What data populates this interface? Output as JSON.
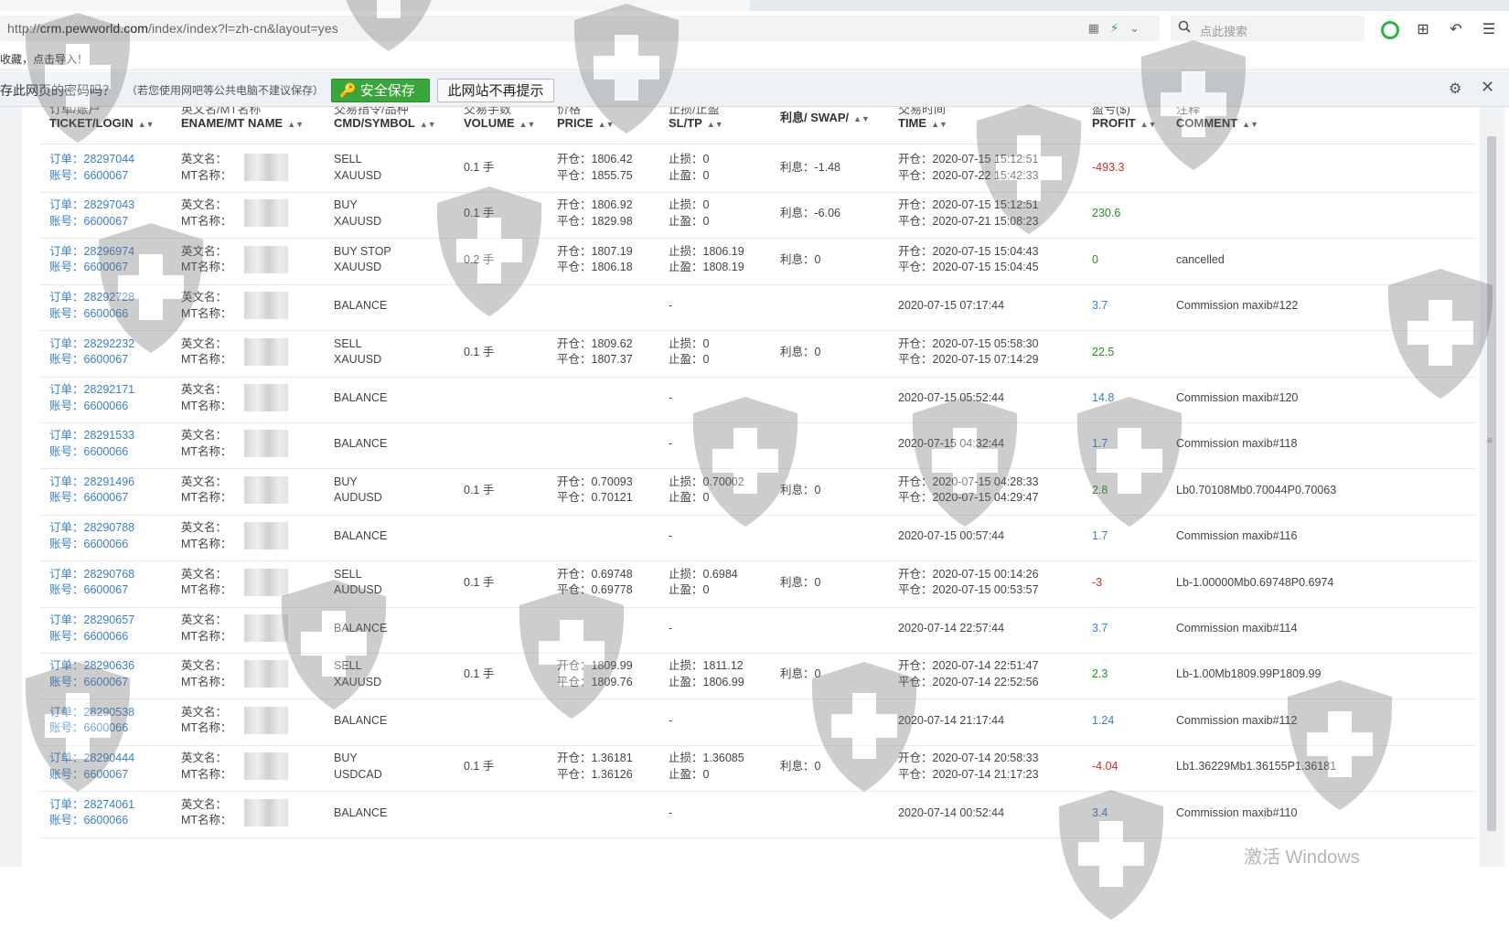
{
  "browser": {
    "url_prefix": "http://",
    "url_host": "crm.pewworld.com",
    "url_path": "/index/index?l=zh-cn&layout=yes",
    "search_placeholder": "点此搜索",
    "bookmark_hint": "收藏，点击导入！"
  },
  "password_bar": {
    "question": "存此网页的密码吗？",
    "note": "（若您使用网吧等公共电脑不建议保存）",
    "save_label": "安全保存",
    "never_label": "此网站不再提示"
  },
  "columns": [
    {
      "cn": "订单/账户",
      "en": "TICKET/LOGIN"
    },
    {
      "cn": "英文名/MT名称",
      "en": "ENAME/MT NAME"
    },
    {
      "cn": "交易指令/品种",
      "en": "CMD/SYMBOL"
    },
    {
      "cn": "交易手数",
      "en": "VOLUME"
    },
    {
      "cn": "价格",
      "en": "PRICE"
    },
    {
      "cn": "止损/止盈",
      "en": "SL/TP"
    },
    {
      "cn": "",
      "en": "利息/ SWAP/"
    },
    {
      "cn": "交易时间",
      "en": "TIME"
    },
    {
      "cn": "盈亏($)",
      "en": "PROFIT"
    },
    {
      "cn": "注释",
      "en": "COMMENT"
    }
  ],
  "rows": [
    {
      "ticket": "订单：28297044",
      "login": "账号：6600067",
      "ename": "英文名：",
      "mtname": "MT名称：",
      "cmd": "SELL",
      "symbol": "XAUUSD",
      "volume": "0.1 手",
      "open_price": "开仓：1806.42",
      "close_price": "平仓：1855.75",
      "sl": "止损：0",
      "tp": "止盈：0",
      "swap": "利息：-1.48",
      "open_time": "开仓：2020-07-15 15:12:51",
      "close_time": "平仓：2020-07-22 15:42:33",
      "profit": "-493.3",
      "profit_kind": "neg",
      "comment": ""
    },
    {
      "ticket": "订单：28297043",
      "login": "账号：6600067",
      "ename": "英文名：",
      "mtname": "MT名称：",
      "cmd": "BUY",
      "symbol": "XAUUSD",
      "volume": "0.1 手",
      "open_price": "开仓：1806.92",
      "close_price": "平仓：1829.98",
      "sl": "止损：0",
      "tp": "止盈：0",
      "swap": "利息：-6.06",
      "open_time": "开仓：2020-07-15 15:12:51",
      "close_time": "平仓：2020-07-21 15:08:23",
      "profit": "230.6",
      "profit_kind": "pos",
      "comment": ""
    },
    {
      "ticket": "订单：28296974",
      "login": "账号：6600067",
      "ename": "英文名：",
      "mtname": "MT名称：",
      "cmd": "BUY STOP",
      "symbol": "XAUUSD",
      "volume": "0.2 手",
      "open_price": "开仓：1807.19",
      "close_price": "平仓：1806.18",
      "sl": "止损：1806.19",
      "tp": "止盈：1808.19",
      "swap": "利息：0",
      "open_time": "开仓：2020-07-15 15:04:43",
      "close_time": "平仓：2020-07-15 15:04:45",
      "profit": "0",
      "profit_kind": "pos",
      "comment": "cancelled"
    },
    {
      "ticket": "订单：28292728",
      "login": "账号：6600066",
      "ename": "英文名：",
      "mtname": "MT名称：",
      "cmd": "BALANCE",
      "symbol": "",
      "volume": "",
      "open_price": "",
      "close_price": "",
      "sl": "-",
      "tp": "",
      "swap": "",
      "open_time": "2020-07-15 07:17:44",
      "close_time": "",
      "profit": "3.7",
      "profit_kind": "blu",
      "comment": "Commission maxib#122"
    },
    {
      "ticket": "订单：28292232",
      "login": "账号：6600067",
      "ename": "英文名：",
      "mtname": "MT名称：",
      "cmd": "SELL",
      "symbol": "XAUUSD",
      "volume": "0.1 手",
      "open_price": "开仓：1809.62",
      "close_price": "平仓：1807.37",
      "sl": "止损：0",
      "tp": "止盈：0",
      "swap": "利息：0",
      "open_time": "开仓：2020-07-15 05:58:30",
      "close_time": "平仓：2020-07-15 07:14:29",
      "profit": "22.5",
      "profit_kind": "pos",
      "comment": ""
    },
    {
      "ticket": "订单：28292171",
      "login": "账号：6600066",
      "ename": "英文名：",
      "mtname": "MT名称：",
      "cmd": "BALANCE",
      "symbol": "",
      "volume": "",
      "open_price": "",
      "close_price": "",
      "sl": "-",
      "tp": "",
      "swap": "",
      "open_time": "2020-07-15 05:52:44",
      "close_time": "",
      "profit": "14.8",
      "profit_kind": "blu",
      "comment": "Commission maxib#120"
    },
    {
      "ticket": "订单：28291533",
      "login": "账号：6600066",
      "ename": "英文名：",
      "mtname": "MT名称：",
      "cmd": "BALANCE",
      "symbol": "",
      "volume": "",
      "open_price": "",
      "close_price": "",
      "sl": "-",
      "tp": "",
      "swap": "",
      "open_time": "2020-07-15 04:32:44",
      "close_time": "",
      "profit": "1.7",
      "profit_kind": "blu",
      "comment": "Commission maxib#118"
    },
    {
      "ticket": "订单：28291496",
      "login": "账号：6600067",
      "ename": "英文名：",
      "mtname": "MT名称：",
      "cmd": "BUY",
      "symbol": "AUDUSD",
      "volume": "0.1 手",
      "open_price": "开仓：0.70093",
      "close_price": "平仓：0.70121",
      "sl": "止损：0.70002",
      "tp": "止盈：0",
      "swap": "利息：0",
      "open_time": "开仓：2020-07-15 04:28:33",
      "close_time": "平仓：2020-07-15 04:29:47",
      "profit": "2.8",
      "profit_kind": "pos",
      "comment": "Lb0.70108Mb0.70044P0.70063"
    },
    {
      "ticket": "订单：28290788",
      "login": "账号：6600066",
      "ename": "英文名：",
      "mtname": "MT名称：",
      "cmd": "BALANCE",
      "symbol": "",
      "volume": "",
      "open_price": "",
      "close_price": "",
      "sl": "-",
      "tp": "",
      "swap": "",
      "open_time": "2020-07-15 00:57:44",
      "close_time": "",
      "profit": "1.7",
      "profit_kind": "blu",
      "comment": "Commission maxib#116"
    },
    {
      "ticket": "订单：28290768",
      "login": "账号：6600067",
      "ename": "英文名：",
      "mtname": "MT名称：",
      "cmd": "SELL",
      "symbol": "AUDUSD",
      "volume": "0.1 手",
      "open_price": "开仓：0.69748",
      "close_price": "平仓：0.69778",
      "sl": "止损：0.6984",
      "tp": "止盈：0",
      "swap": "利息：0",
      "open_time": "开仓：2020-07-15 00:14:26",
      "close_time": "平仓：2020-07-15 00:53:57",
      "profit": "-3",
      "profit_kind": "neg",
      "comment": "Lb-1.00000Mb0.69748P0.6974"
    },
    {
      "ticket": "订单：28290657",
      "login": "账号：6600066",
      "ename": "英文名：",
      "mtname": "MT名称：",
      "cmd": "BALANCE",
      "symbol": "",
      "volume": "",
      "open_price": "",
      "close_price": "",
      "sl": "-",
      "tp": "",
      "swap": "",
      "open_time": "2020-07-14 22:57:44",
      "close_time": "",
      "profit": "3.7",
      "profit_kind": "blu",
      "comment": "Commission maxib#114"
    },
    {
      "ticket": "订单：28290636",
      "login": "账号：6600067",
      "ename": "英文名：",
      "mtname": "MT名称：",
      "cmd": "SELL",
      "symbol": "XAUUSD",
      "volume": "0.1 手",
      "open_price": "开仓：1809.99",
      "close_price": "平仓：1809.76",
      "sl": "止损：1811.12",
      "tp": "止盈：1806.99",
      "swap": "利息：0",
      "open_time": "开仓：2020-07-14 22:51:47",
      "close_time": "平仓：2020-07-14 22:52:56",
      "profit": "2.3",
      "profit_kind": "pos",
      "comment": "Lb-1.00Mb1809.99P1809.99"
    },
    {
      "ticket": "订单：28290538",
      "login": "账号：6600066",
      "ename": "英文名：",
      "mtname": "MT名称：",
      "cmd": "BALANCE",
      "symbol": "",
      "volume": "",
      "open_price": "",
      "close_price": "",
      "sl": "-",
      "tp": "",
      "swap": "",
      "open_time": "2020-07-14 21:17:44",
      "close_time": "",
      "profit": "1.24",
      "profit_kind": "blu",
      "comment": "Commission maxib#112"
    },
    {
      "ticket": "订单：28290444",
      "login": "账号：6600067",
      "ename": "英文名：",
      "mtname": "MT名称：",
      "cmd": "BUY",
      "symbol": "USDCAD",
      "volume": "0.1 手",
      "open_price": "开仓：1.36181",
      "close_price": "平仓：1.36126",
      "sl": "止损：1.36085",
      "tp": "止盈：0",
      "swap": "利息：0",
      "open_time": "开仓：2020-07-14 20:58:33",
      "close_time": "平仓：2020-07-14 21:17:23",
      "profit": "-4.04",
      "profit_kind": "neg",
      "comment": "Lb1.36229Mb1.36155P1.36181"
    },
    {
      "ticket": "订单：28274061",
      "login": "账号：6600066",
      "ename": "英文名：",
      "mtname": "MT名称：",
      "cmd": "BALANCE",
      "symbol": "",
      "volume": "",
      "open_price": "",
      "close_price": "",
      "sl": "-",
      "tp": "",
      "swap": "",
      "open_time": "2020-07-14 00:52:44",
      "close_time": "",
      "profit": "3.4",
      "profit_kind": "blu",
      "comment": "Commission maxib#110"
    }
  ],
  "windows_watermark": "激活 Windows",
  "colors": {
    "positive": "#2a8a2a",
    "negative": "#d42b2b",
    "neutral": "#3a7fc4",
    "save_button": "#3aa53c"
  },
  "icons": [
    "search-icon",
    "lightning-icon",
    "qr-icon",
    "chevron-down-icon",
    "shield-app-icon",
    "grid-icon",
    "undo-icon",
    "menu-icon",
    "key-icon",
    "gear-icon",
    "close-icon",
    "sort-icon"
  ]
}
